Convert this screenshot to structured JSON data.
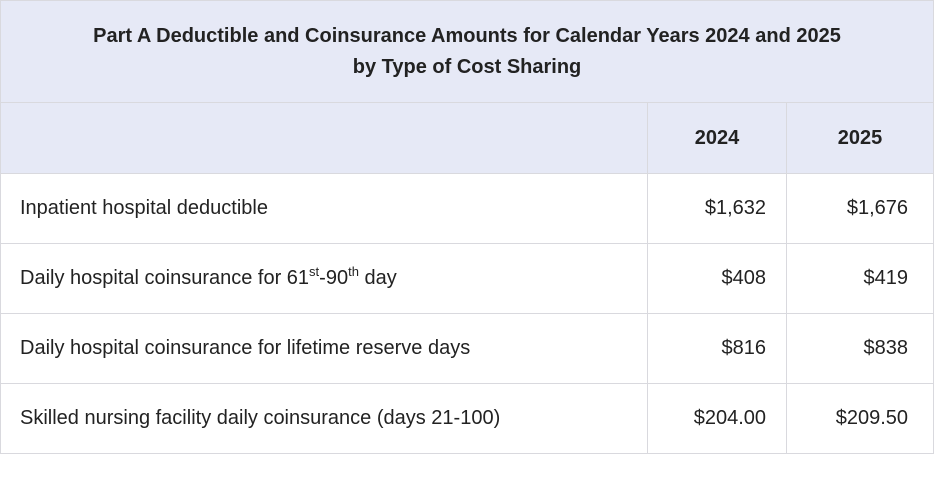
{
  "table": {
    "title_line1": "Part A Deductible and Coinsurance Amounts for Calendar Years 2024 and 2025",
    "title_line2": "by Type of Cost Sharing",
    "header_blank": "",
    "col_2024": "2024",
    "col_2025": "2025",
    "rows": [
      {
        "label": "Inpatient hospital deductible",
        "v2024": "$1,632",
        "v2025": "$1,676"
      },
      {
        "label_pre": "Daily hospital coinsurance for 61",
        "label_sup1": "st",
        "label_mid": "-90",
        "label_sup2": "th",
        "label_post": " day",
        "v2024": "$408",
        "v2025": "$419"
      },
      {
        "label": "Daily hospital coinsurance for lifetime reserve days",
        "v2024": "$816",
        "v2025": "$838"
      },
      {
        "label": "Skilled nursing facility daily coinsurance (days 21-100)",
        "v2024": "$204.00",
        "v2025": "$209.50"
      }
    ]
  }
}
